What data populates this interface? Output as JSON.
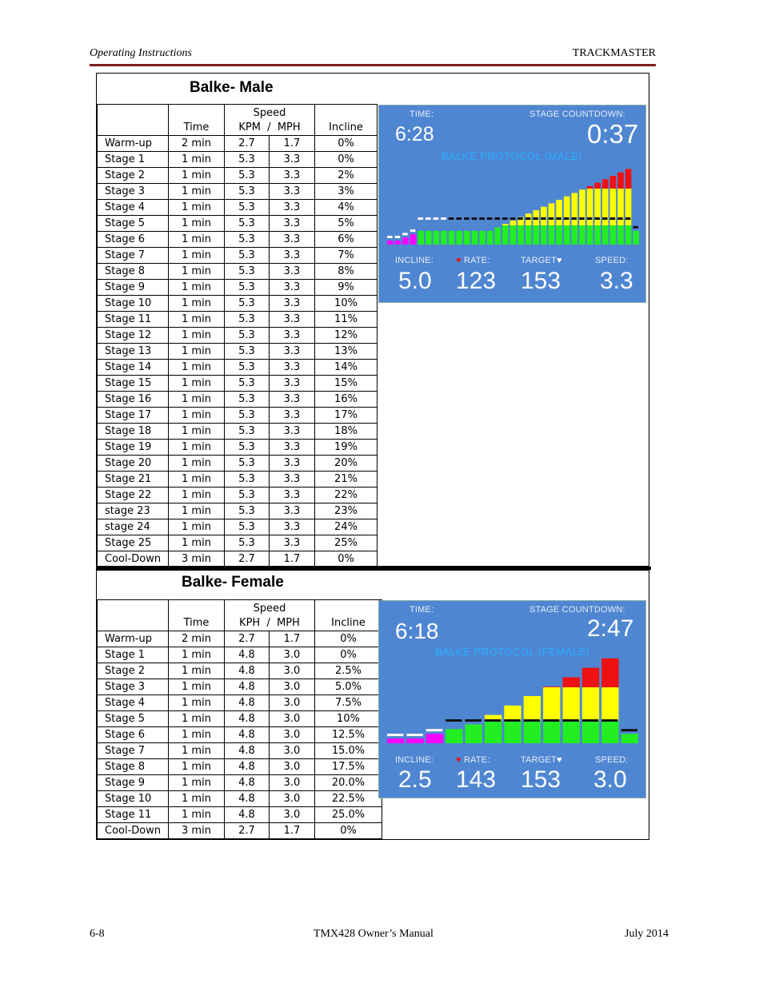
{
  "header": {
    "left": "Operating Instructions",
    "right": "TRACKMASTER"
  },
  "footer": {
    "left": "6-8",
    "center": "TMX428 Owner’s Manual",
    "right": "July 2014"
  },
  "male": {
    "title": "Balke- Male",
    "table": {
      "headers": {
        "time": "Time",
        "speed": "Speed",
        "kpm_mph": "KPM  /  MPH",
        "incline": "Incline"
      },
      "rows": [
        [
          "Warm-up",
          "2 min",
          "2.7",
          "1.7",
          "0%"
        ],
        [
          "Stage 1",
          "1 min",
          "5.3",
          "3.3",
          "0%"
        ],
        [
          "Stage 2",
          "1 min",
          "5.3",
          "3.3",
          "2%"
        ],
        [
          "Stage 3",
          "1 min",
          "5.3",
          "3.3",
          "3%"
        ],
        [
          "Stage 4",
          "1 min",
          "5.3",
          "3.3",
          "4%"
        ],
        [
          "Stage 5",
          "1 min",
          "5.3",
          "3.3",
          "5%"
        ],
        [
          "Stage 6",
          "1 min",
          "5.3",
          "3.3",
          "6%"
        ],
        [
          "Stage 7",
          "1 min",
          "5.3",
          "3.3",
          "7%"
        ],
        [
          "Stage 8",
          "1 min",
          "5.3",
          "3.3",
          "8%"
        ],
        [
          "Stage 9",
          "1 min",
          "5.3",
          "3.3",
          "9%"
        ],
        [
          "Stage 10",
          "1 min",
          "5.3",
          "3.3",
          "10%"
        ],
        [
          "Stage 11",
          "1 min",
          "5.3",
          "3.3",
          "11%"
        ],
        [
          "Stage 12",
          "1 min",
          "5.3",
          "3.3",
          "12%"
        ],
        [
          "Stage 13",
          "1 min",
          "5.3",
          "3.3",
          "13%"
        ],
        [
          "Stage 14",
          "1 min",
          "5.3",
          "3.3",
          "14%"
        ],
        [
          "Stage 15",
          "1 min",
          "5.3",
          "3.3",
          "15%"
        ],
        [
          "Stage 16",
          "1 min",
          "5.3",
          "3.3",
          "16%"
        ],
        [
          "Stage 17",
          "1 min",
          "5.3",
          "3.3",
          "17%"
        ],
        [
          "Stage 18",
          "1 min",
          "5.3",
          "3.3",
          "18%"
        ],
        [
          "Stage 19",
          "1 min",
          "5.3",
          "3.3",
          "19%"
        ],
        [
          "Stage 20",
          "1 min",
          "5.3",
          "3.3",
          "20%"
        ],
        [
          "Stage 21",
          "1 min",
          "5.3",
          "3.3",
          "21%"
        ],
        [
          "Stage 22",
          "1 min",
          "5.3",
          "3.3",
          "22%"
        ],
        [
          "stage 23",
          "1 min",
          "5.3",
          "3.3",
          "23%"
        ],
        [
          "stage 24",
          "1 min",
          "5.3",
          "3.3",
          "24%"
        ],
        [
          "Stage 25",
          "1 min",
          "5.3",
          "3.3",
          "25%"
        ],
        [
          "Cool-Down",
          "3 min",
          "2.7",
          "1.7",
          "0%"
        ]
      ]
    },
    "display": {
      "time_label": "TIME:",
      "time_value": "6:28",
      "countdown_label": "STAGE COUNTDOWN:",
      "countdown_value": "0:37",
      "protocol": "BALKE PROTOCOL (MALE)",
      "incline_label": "INCLINE:",
      "incline_value": "5.0",
      "rate_label": "RATE:",
      "rate_value": "123",
      "target_label": "TARGET",
      "target_value": "153",
      "speed_label": "SPEED:",
      "speed_value": "3.3",
      "bar_levels": [
        1,
        1,
        2,
        3,
        4,
        4,
        4,
        4,
        4,
        4,
        4,
        4,
        4,
        4,
        5,
        6,
        7,
        8,
        9,
        10,
        11,
        12,
        13,
        14,
        15,
        16,
        17,
        18,
        19,
        20,
        21,
        22,
        4
      ],
      "bar_colors": {
        "low": "#ff00ff",
        "base": "#22ee22",
        "mid": "#ffff00",
        "high": "#ee1111"
      }
    }
  },
  "female": {
    "title": "Balke- Female",
    "table": {
      "headers": {
        "time": "Time",
        "speed": "Speed",
        "kph_mph": "KPH  /  MPH",
        "incline": "Incline"
      },
      "rows": [
        [
          "Warm-up",
          "2 min",
          "2.7",
          "1.7",
          "0%"
        ],
        [
          "Stage 1",
          "1 min",
          "4.8",
          "3.0",
          "0%"
        ],
        [
          "Stage 2",
          "1 min",
          "4.8",
          "3.0",
          "2.5%"
        ],
        [
          "Stage 3",
          "1 min",
          "4.8",
          "3.0",
          "5.0%"
        ],
        [
          "Stage 4",
          "1 min",
          "4.8",
          "3.0",
          "7.5%"
        ],
        [
          "Stage 5",
          "1 min",
          "4.8",
          "3.0",
          "10%"
        ],
        [
          "Stage 6",
          "1 min",
          "4.8",
          "3.0",
          "12.5%"
        ],
        [
          "Stage 7",
          "1 min",
          "4.8",
          "3.0",
          "15.0%"
        ],
        [
          "Stage 8",
          "1 min",
          "4.8",
          "3.0",
          "17.5%"
        ],
        [
          "Stage 9",
          "1 min",
          "4.8",
          "3.0",
          "20.0%"
        ],
        [
          "Stage 10",
          "1 min",
          "4.8",
          "3.0",
          "22.5%"
        ],
        [
          "Stage 11",
          "1 min",
          "4.8",
          "3.0",
          "25.0%"
        ],
        [
          "Cool-Down",
          "3 min",
          "2.7",
          "1.7",
          "0%"
        ]
      ]
    },
    "display": {
      "time_label": "TIME:",
      "time_value": "6:18",
      "countdown_label": "STAGE COUNTDOWN:",
      "countdown_value": "2:47",
      "protocol": "BALKE PROTOCOL (FEMALE)",
      "incline_label": "INCLINE:",
      "incline_value": "2.5",
      "rate_label": "RATE:",
      "rate_value": "143",
      "target_label": "TARGET",
      "target_value": "153",
      "speed_label": "SPEED:",
      "speed_value": "3.0",
      "bar_levels": [
        1,
        1,
        2,
        3,
        4,
        6,
        8,
        10,
        12,
        14,
        16,
        18,
        2
      ],
      "bar_colors": {
        "low": "#ff00ff",
        "base": "#22ee22",
        "mid": "#ffff00",
        "high": "#ee1111"
      }
    }
  }
}
